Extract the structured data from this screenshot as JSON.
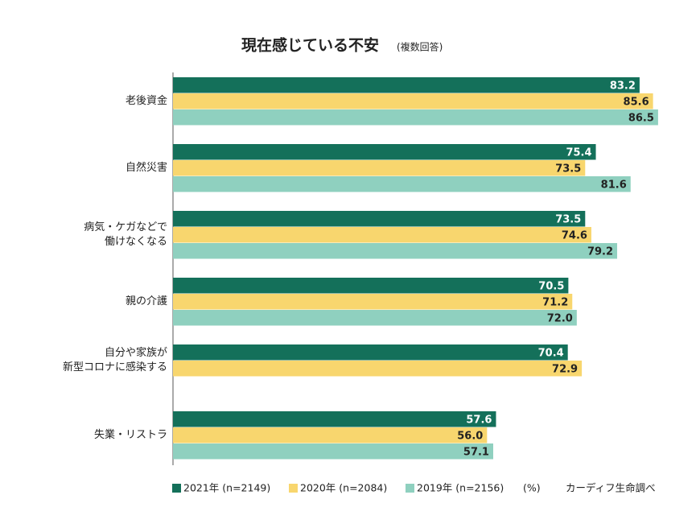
{
  "chart_data": {
    "type": "bar",
    "orientation": "horizontal",
    "title": "現在感じている不安",
    "subtitle": "(複数回答)",
    "categories": [
      "老後資金",
      "自然災害",
      "病気・ケガなどで\n働けなくなる",
      "親の介護",
      "自分や家族が\n新型コロナに感染する",
      "失業・リストラ"
    ],
    "series": [
      {
        "name": "2021年 (n=2149)",
        "color": "#14705a",
        "label_color": "#ffffff",
        "values": [
          83.2,
          75.4,
          73.5,
          70.5,
          70.4,
          57.6
        ],
        "value_labels": [
          "83.2",
          "75.4",
          "73.5",
          "70.5",
          "70.4",
          "57.6"
        ]
      },
      {
        "name": "2020年 (n=2084)",
        "color": "#f8d66e",
        "label_color": "#222222",
        "values": [
          85.6,
          73.5,
          74.6,
          71.2,
          72.9,
          56.0
        ],
        "value_labels": [
          "85.6",
          "73.5",
          "74.6",
          "71.2",
          "72.9",
          "56.0"
        ]
      },
      {
        "name": "2019年 (n=2156)",
        "color": "#8fd0bf",
        "label_color": "#222222",
        "values": [
          86.5,
          81.6,
          79.2,
          72.0,
          null,
          57.1
        ],
        "value_labels": [
          "86.5",
          "81.6",
          "79.2",
          "72.0",
          null,
          "57.1"
        ]
      }
    ],
    "unit": "(%)",
    "source": "カーディフ生命調べ"
  }
}
